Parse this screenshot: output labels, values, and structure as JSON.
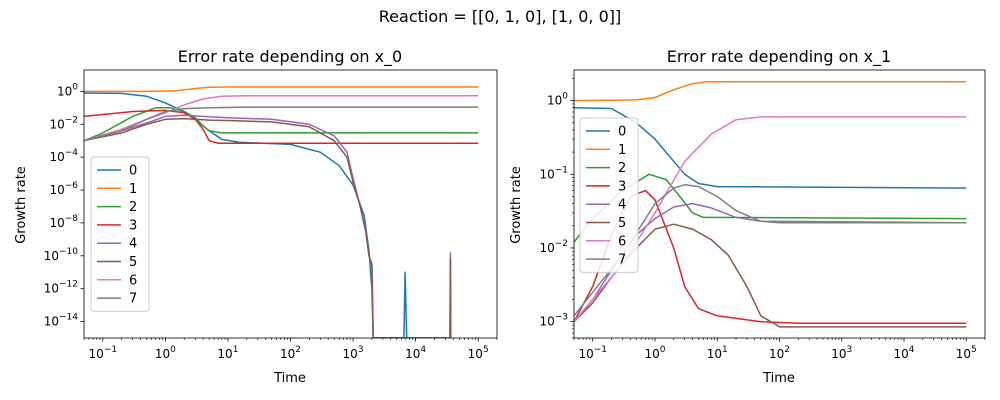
{
  "figure": {
    "suptitle": "Reaction = [[0, 1, 0], [1, 0, 0]]"
  },
  "series_colors": [
    "#1f77b4",
    "#ff7f0e",
    "#2ca02c",
    "#d62728",
    "#9467bd",
    "#8c564b",
    "#e377c2",
    "#7f7f7f"
  ],
  "chart_data": [
    {
      "type": "line",
      "title": "Error rate depending on x_0",
      "xlabel": "Time",
      "ylabel": "Growth rate",
      "xscale": "log",
      "yscale": "log",
      "xlim": [
        0.05,
        200000
      ],
      "ylim": [
        1e-15,
        20
      ],
      "xticks": [
        {
          "v": 0.1,
          "b": "10",
          "e": "−1"
        },
        {
          "v": 1,
          "b": "10",
          "e": "0"
        },
        {
          "v": 10,
          "b": "10",
          "e": "1"
        },
        {
          "v": 100,
          "b": "10",
          "e": "2"
        },
        {
          "v": 1000,
          "b": "10",
          "e": "3"
        },
        {
          "v": 10000,
          "b": "10",
          "e": "4"
        },
        {
          "v": 100000,
          "b": "10",
          "e": "5"
        }
      ],
      "yticks": [
        {
          "v": 1,
          "b": "10",
          "e": "0"
        },
        {
          "v": 0.01,
          "b": "10",
          "e": "−2"
        },
        {
          "v": 0.0001,
          "b": "10",
          "e": "−4"
        },
        {
          "v": 1e-06,
          "b": "10",
          "e": "−6"
        },
        {
          "v": 1e-08,
          "b": "10",
          "e": "−8"
        },
        {
          "v": 1e-10,
          "b": "10",
          "e": "−10"
        },
        {
          "v": 1e-12,
          "b": "10",
          "e": "−12"
        },
        {
          "v": 1e-14,
          "b": "10",
          "e": "−14"
        }
      ],
      "legend": "center-left",
      "grid": false,
      "series": [
        {
          "name": "0",
          "points": [
            [
              0.05,
              0.8
            ],
            [
              0.2,
              0.75
            ],
            [
              0.5,
              0.5
            ],
            [
              1,
              0.2
            ],
            [
              2,
              0.06
            ],
            [
              3,
              0.02
            ],
            [
              5,
              0.004
            ],
            [
              8,
              0.0012
            ],
            [
              15,
              0.0008
            ],
            [
              100,
              0.0006
            ],
            [
              300,
              0.0002
            ],
            [
              600,
              3e-05
            ],
            [
              1000,
              2e-06
            ],
            [
              1500,
              3e-08
            ],
            [
              1800,
              2e-10
            ],
            [
              2000,
              1e-12
            ],
            [
              2100,
              1e-15
            ],
            [
              6500,
              1e-15
            ],
            [
              6800,
              1e-11
            ],
            [
              7200,
              1e-15
            ]
          ]
        },
        {
          "name": "1",
          "points": [
            [
              0.05,
              1
            ],
            [
              0.5,
              1
            ],
            [
              1.5,
              1.1
            ],
            [
              3,
              1.5
            ],
            [
              5,
              1.8
            ],
            [
              10,
              1.85
            ],
            [
              100000,
              1.85
            ]
          ]
        },
        {
          "name": "2",
          "points": [
            [
              0.05,
              0.001
            ],
            [
              0.1,
              0.003
            ],
            [
              0.3,
              0.03
            ],
            [
              0.7,
              0.1
            ],
            [
              1.2,
              0.1
            ],
            [
              2,
              0.06
            ],
            [
              3,
              0.025
            ],
            [
              4,
              0.008
            ],
            [
              5,
              0.004
            ],
            [
              8,
              0.003
            ],
            [
              100000,
              0.003
            ]
          ]
        },
        {
          "name": "3",
          "points": [
            [
              0.05,
              0.03
            ],
            [
              0.3,
              0.06
            ],
            [
              1,
              0.07
            ],
            [
              2,
              0.05
            ],
            [
              3,
              0.02
            ],
            [
              4,
              0.005
            ],
            [
              5,
              0.001
            ],
            [
              7,
              0.0007
            ],
            [
              100000,
              0.0007
            ]
          ]
        },
        {
          "name": "4",
          "points": [
            [
              0.05,
              0.001
            ],
            [
              0.2,
              0.004
            ],
            [
              0.5,
              0.012
            ],
            [
              1,
              0.03
            ],
            [
              2,
              0.035
            ],
            [
              4,
              0.03
            ],
            [
              10,
              0.025
            ],
            [
              50,
              0.02
            ],
            [
              200,
              0.01
            ],
            [
              500,
              0.002
            ],
            [
              800,
              0.0002
            ],
            [
              1000,
              5e-06
            ],
            [
              1300,
              1e-07
            ],
            [
              1600,
              3e-09
            ],
            [
              1800,
              1e-10
            ],
            [
              2000,
              3e-11
            ],
            [
              2100,
              1e-15
            ],
            [
              35500,
              1e-15
            ],
            [
              36000,
              1.5e-10
            ],
            [
              36500,
              1e-15
            ]
          ]
        },
        {
          "name": "5",
          "points": [
            [
              0.05,
              0.001
            ],
            [
              0.2,
              0.003
            ],
            [
              0.5,
              0.01
            ],
            [
              1,
              0.02
            ],
            [
              2,
              0.022
            ],
            [
              5,
              0.018
            ],
            [
              10,
              0.017
            ],
            [
              50,
              0.014
            ],
            [
              200,
              0.007
            ],
            [
              500,
              0.001
            ],
            [
              800,
              0.0001
            ],
            [
              1000,
              3e-06
            ],
            [
              1300,
              1e-07
            ],
            [
              1600,
              3e-09
            ],
            [
              1800,
              1e-10
            ],
            [
              2000,
              3e-11
            ],
            [
              2100,
              1e-15
            ],
            [
              35500,
              1e-15
            ],
            [
              36000,
              7e-11
            ],
            [
              36500,
              1e-15
            ]
          ]
        },
        {
          "name": "6",
          "points": [
            [
              0.05,
              0.001
            ],
            [
              0.2,
              0.005
            ],
            [
              0.5,
              0.02
            ],
            [
              1,
              0.05
            ],
            [
              2,
              0.15
            ],
            [
              4,
              0.35
            ],
            [
              8,
              0.5
            ],
            [
              20,
              0.55
            ],
            [
              100000,
              0.55
            ]
          ]
        },
        {
          "name": "7",
          "points": [
            [
              0.05,
              0.001
            ],
            [
              0.2,
              0.004
            ],
            [
              0.5,
              0.02
            ],
            [
              1,
              0.06
            ],
            [
              2,
              0.09
            ],
            [
              5,
              0.1
            ],
            [
              20,
              0.11
            ],
            [
              100000,
              0.11
            ]
          ]
        }
      ]
    },
    {
      "type": "line",
      "title": "Error rate depending on x_1",
      "xlabel": "Time",
      "ylabel": "Growth rate",
      "xscale": "log",
      "yscale": "log",
      "xlim": [
        0.05,
        200000
      ],
      "ylim": [
        0.0006,
        2.6
      ],
      "xticks": [
        {
          "v": 0.1,
          "b": "10",
          "e": "−1"
        },
        {
          "v": 1,
          "b": "10",
          "e": "0"
        },
        {
          "v": 10,
          "b": "10",
          "e": "1"
        },
        {
          "v": 100,
          "b": "10",
          "e": "2"
        },
        {
          "v": 1000,
          "b": "10",
          "e": "3"
        },
        {
          "v": 10000,
          "b": "10",
          "e": "4"
        },
        {
          "v": 100000,
          "b": "10",
          "e": "5"
        }
      ],
      "yticks": [
        {
          "v": 1,
          "b": "10",
          "e": "0"
        },
        {
          "v": 0.1,
          "b": "10",
          "e": "−1"
        },
        {
          "v": 0.01,
          "b": "10",
          "e": "−2"
        },
        {
          "v": 0.001,
          "b": "10",
          "e": "−3"
        }
      ],
      "legend": "center-left",
      "grid": false,
      "series": [
        {
          "name": "0",
          "points": [
            [
              0.05,
              0.8
            ],
            [
              0.2,
              0.78
            ],
            [
              0.5,
              0.5
            ],
            [
              1,
              0.3
            ],
            [
              2,
              0.15
            ],
            [
              3,
              0.1
            ],
            [
              5,
              0.075
            ],
            [
              10,
              0.068
            ],
            [
              100000,
              0.065
            ]
          ]
        },
        {
          "name": "1",
          "points": [
            [
              0.05,
              1
            ],
            [
              0.5,
              1.02
            ],
            [
              1,
              1.1
            ],
            [
              2,
              1.4
            ],
            [
              4,
              1.7
            ],
            [
              7,
              1.8
            ],
            [
              100000,
              1.8
            ]
          ]
        },
        {
          "name": "2",
          "points": [
            [
              0.05,
              0.012
            ],
            [
              0.1,
              0.025
            ],
            [
              0.3,
              0.06
            ],
            [
              0.8,
              0.1
            ],
            [
              1.5,
              0.085
            ],
            [
              2.5,
              0.05
            ],
            [
              4,
              0.03
            ],
            [
              6,
              0.026
            ],
            [
              100000,
              0.025
            ]
          ]
        },
        {
          "name": "3",
          "points": [
            [
              0.05,
              0.001
            ],
            [
              0.1,
              0.003
            ],
            [
              0.2,
              0.015
            ],
            [
              0.4,
              0.05
            ],
            [
              0.7,
              0.06
            ],
            [
              1,
              0.045
            ],
            [
              2,
              0.01
            ],
            [
              3,
              0.003
            ],
            [
              5,
              0.0015
            ],
            [
              10,
              0.0012
            ],
            [
              50,
              0.001
            ],
            [
              200,
              0.00095
            ],
            [
              100000,
              0.00095
            ]
          ]
        },
        {
          "name": "4",
          "points": [
            [
              0.05,
              0.001
            ],
            [
              0.1,
              0.002
            ],
            [
              0.2,
              0.005
            ],
            [
              0.5,
              0.015
            ],
            [
              1,
              0.025
            ],
            [
              2,
              0.036
            ],
            [
              4,
              0.04
            ],
            [
              8,
              0.035
            ],
            [
              20,
              0.026
            ],
            [
              50,
              0.023
            ],
            [
              100000,
              0.022
            ]
          ]
        },
        {
          "name": "5",
          "points": [
            [
              0.05,
              0.001
            ],
            [
              0.1,
              0.0018
            ],
            [
              0.2,
              0.004
            ],
            [
              0.5,
              0.01
            ],
            [
              1,
              0.018
            ],
            [
              2,
              0.021
            ],
            [
              4,
              0.018
            ],
            [
              8,
              0.013
            ],
            [
              15,
              0.008
            ],
            [
              30,
              0.003
            ],
            [
              50,
              0.0012
            ],
            [
              100,
              0.00085
            ],
            [
              100000,
              0.00085
            ]
          ]
        },
        {
          "name": "6",
          "points": [
            [
              0.05,
              0.001
            ],
            [
              0.1,
              0.002
            ],
            [
              0.3,
              0.006
            ],
            [
              1,
              0.03
            ],
            [
              3,
              0.15
            ],
            [
              8,
              0.35
            ],
            [
              20,
              0.55
            ],
            [
              50,
              0.6
            ],
            [
              100000,
              0.6
            ]
          ]
        },
        {
          "name": "7",
          "points": [
            [
              0.05,
              0.0012
            ],
            [
              0.1,
              0.0025
            ],
            [
              0.3,
              0.008
            ],
            [
              1,
              0.04
            ],
            [
              2,
              0.065
            ],
            [
              3,
              0.072
            ],
            [
              5,
              0.068
            ],
            [
              10,
              0.05
            ],
            [
              20,
              0.032
            ],
            [
              50,
              0.023
            ],
            [
              100,
              0.022
            ],
            [
              100000,
              0.022
            ]
          ]
        }
      ]
    }
  ]
}
